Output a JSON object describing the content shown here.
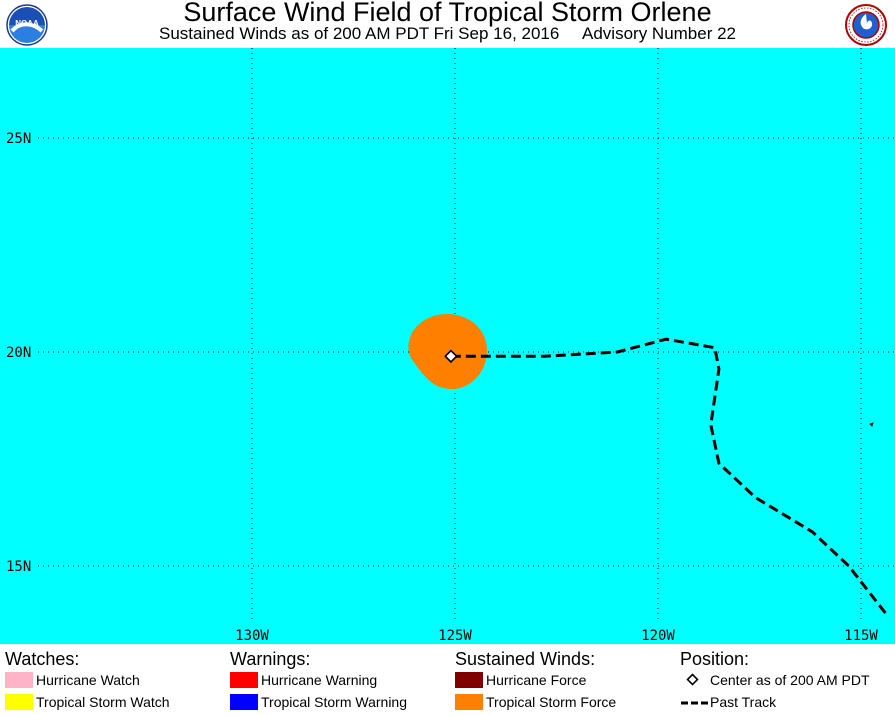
{
  "header": {
    "title": "Surface Wind Field of Tropical Storm Orlene",
    "subtitle": "Sustained Winds as of 200 AM PDT Fri Sep 16, 2016     Advisory Number 22"
  },
  "logos": {
    "left": {
      "icon": "noaa-logo-icon",
      "text": "NOAA"
    },
    "right": {
      "icon": "nws-logo-icon",
      "text": "NATIONAL WEATHER SERVICE"
    }
  },
  "map": {
    "ocean_color": "#00ffff",
    "lat_labels": [
      "25N",
      "20N",
      "15N"
    ],
    "lon_labels": [
      "130W",
      "125W",
      "120W",
      "115W"
    ],
    "center": {
      "lat": 19.9,
      "lon": -125.1
    },
    "past_track": [
      [
        -114.4,
        13.9
      ],
      [
        -115.3,
        15.0
      ],
      [
        -116.2,
        15.8
      ],
      [
        -117.6,
        16.6
      ],
      [
        -118.5,
        17.4
      ],
      [
        -118.7,
        18.3
      ],
      [
        -118.5,
        19.6
      ],
      [
        -118.6,
        20.1
      ],
      [
        -119.8,
        20.3
      ],
      [
        -121.0,
        20.0
      ],
      [
        -122.8,
        19.9
      ],
      [
        -125.1,
        19.9
      ]
    ],
    "wind_colors": {
      "tropical_storm_force": "#ff8000",
      "hurricane_force": "#800000"
    }
  },
  "legend": {
    "watches": {
      "heading": "Watches:",
      "items": [
        {
          "label": "Hurricane Watch",
          "color": "#ffb3c6"
        },
        {
          "label": "Tropical Storm Watch",
          "color": "#ffff00"
        }
      ]
    },
    "warnings": {
      "heading": "Warnings:",
      "items": [
        {
          "label": "Hurricane Warning",
          "color": "#ff0000"
        },
        {
          "label": "Tropical Storm Warning",
          "color": "#0000ff"
        }
      ]
    },
    "winds": {
      "heading": "Sustained Winds:",
      "items": [
        {
          "label": "Hurricane Force",
          "color": "#800000"
        },
        {
          "label": "Tropical Storm Force",
          "color": "#ff8000"
        }
      ]
    },
    "position": {
      "heading": "Position:",
      "center_label": "Center as of 200 AM PDT",
      "track_label": "Past Track"
    }
  }
}
